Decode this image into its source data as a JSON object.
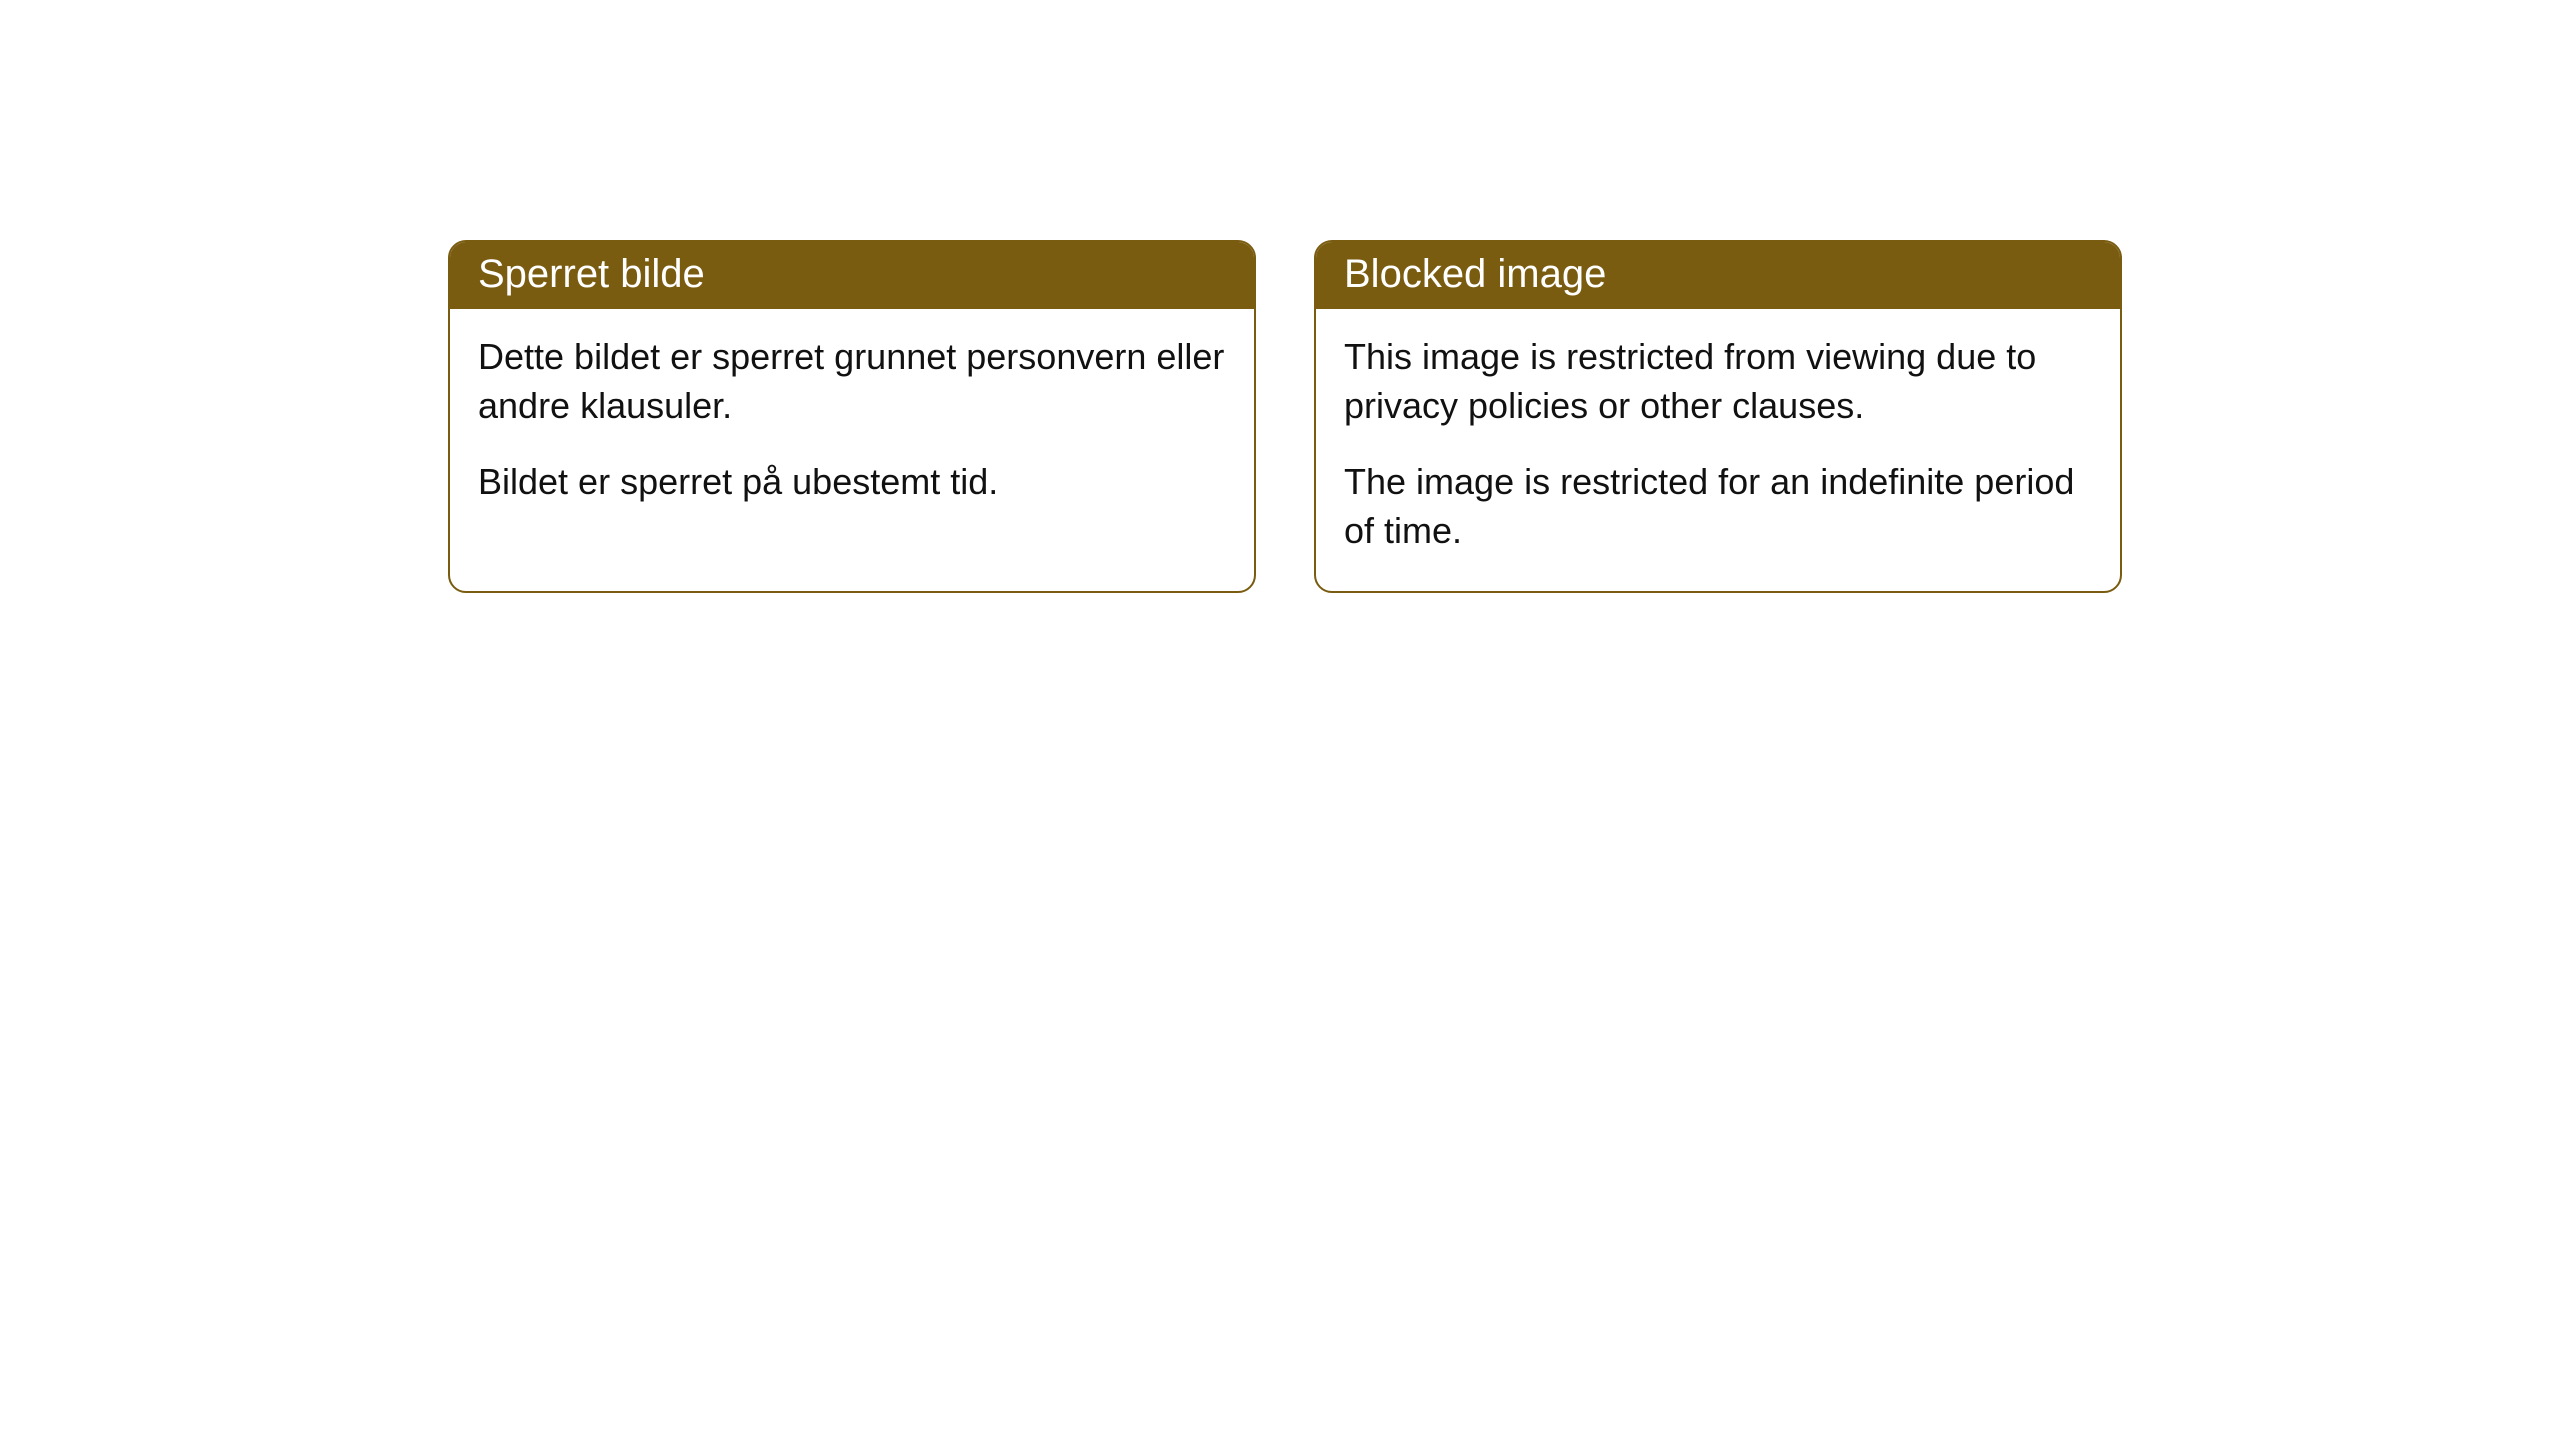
{
  "cards": [
    {
      "title": "Sperret bilde",
      "para1": "Dette bildet er sperret grunnet personvern eller andre klausuler.",
      "para2": "Bildet er sperret på ubestemt tid."
    },
    {
      "title": "Blocked image",
      "para1": "This image is restricted from viewing due to privacy policies or other clauses.",
      "para2": "The image is restricted for an indefinite period of time."
    }
  ],
  "style": {
    "accent_color": "#7a5c10",
    "background_color": "#ffffff",
    "text_color": "#111111",
    "border_radius": 18,
    "title_fontsize": 40,
    "body_fontsize": 36
  }
}
